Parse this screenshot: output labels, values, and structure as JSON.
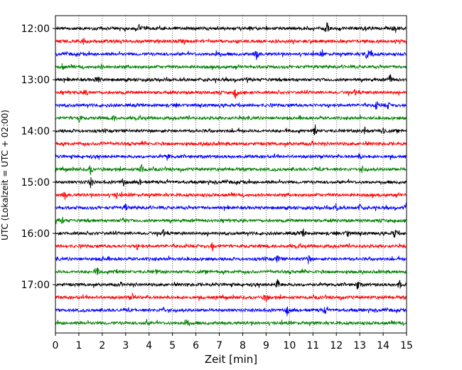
{
  "chart_data": {
    "type": "line",
    "title": "",
    "xlabel": "Zeit  [min]",
    "ylabel": "UTC (Lokalzeit = UTC + 02:00)",
    "xlim": [
      0,
      15
    ],
    "x_ticks": [
      "0",
      "1",
      "2",
      "3",
      "4",
      "5",
      "6",
      "7",
      "8",
      "9",
      "10",
      "11",
      "12",
      "13",
      "14",
      "15"
    ],
    "y_ticks": [
      "12:00",
      "13:00",
      "14:00",
      "15:00",
      "16:00",
      "17:00"
    ],
    "grid": "vertical dotted at each minute",
    "line_colors": [
      "#000000",
      "#ff0000",
      "#0000ff",
      "#008000"
    ],
    "series": [
      {
        "start": "12:00",
        "events": [
          [
            3.6,
            0.9
          ],
          [
            11.6,
            1.0
          ],
          [
            13.2,
            0.5
          ],
          [
            14.5,
            0.9
          ]
        ]
      },
      {
        "start": "12:15",
        "events": [
          [
            1.2,
            0.5
          ],
          [
            5.5,
            0.3
          ]
        ]
      },
      {
        "start": "12:30",
        "events": [
          [
            6.9,
            0.7
          ],
          [
            8.6,
            1.0
          ],
          [
            11.4,
            0.5
          ],
          [
            13.3,
            0.9
          ],
          [
            13.5,
            0.7
          ]
        ]
      },
      {
        "start": "12:45",
        "events": [
          [
            0.3,
            0.5
          ],
          [
            2.0,
            0.3
          ]
        ]
      },
      {
        "start": "13:00",
        "events": [
          [
            1.8,
            0.8
          ],
          [
            14.3,
            0.8
          ]
        ]
      },
      {
        "start": "13:15",
        "events": [
          [
            1.3,
            0.6
          ],
          [
            7.7,
            1.0
          ],
          [
            12.8,
            0.4
          ]
        ]
      },
      {
        "start": "13:30",
        "events": [
          [
            13.7,
            0.7
          ],
          [
            14.2,
            0.6
          ]
        ]
      },
      {
        "start": "13:45",
        "events": [
          [
            1.0,
            0.6
          ],
          [
            2.5,
            0.4
          ]
        ]
      },
      {
        "start": "14:00",
        "events": [
          [
            11.1,
            0.8
          ],
          [
            13.2,
            0.7
          ],
          [
            14.0,
            0.9
          ]
        ]
      },
      {
        "start": "14:15",
        "events": [
          [
            2.0,
            0.3
          ],
          [
            6.5,
            0.3
          ]
        ]
      },
      {
        "start": "14:30",
        "events": [
          [
            4.8,
            0.7
          ],
          [
            13.0,
            0.4
          ]
        ]
      },
      {
        "start": "14:45",
        "events": [
          [
            1.5,
            0.7
          ],
          [
            3.7,
            0.9
          ],
          [
            13.1,
            0.5
          ]
        ]
      },
      {
        "start": "15:00",
        "events": [
          [
            1.5,
            0.8
          ],
          [
            2.9,
            0.9
          ],
          [
            3.6,
            0.5
          ]
        ]
      },
      {
        "start": "15:15",
        "events": [
          [
            0.4,
            0.6
          ],
          [
            2.6,
            0.5
          ]
        ]
      },
      {
        "start": "15:30",
        "events": [
          [
            3.0,
            0.6
          ],
          [
            12.0,
            0.8
          ],
          [
            13.0,
            0.6
          ],
          [
            15.0,
            1.0
          ]
        ]
      },
      {
        "start": "15:45",
        "events": [
          [
            0.3,
            0.5
          ],
          [
            2.9,
            0.6
          ]
        ]
      },
      {
        "start": "16:00",
        "events": [
          [
            4.6,
            0.6
          ],
          [
            10.6,
            0.7
          ],
          [
            12.5,
            0.8
          ],
          [
            14.5,
            0.8
          ]
        ]
      },
      {
        "start": "16:15",
        "events": [
          [
            6.7,
            0.8
          ],
          [
            3.5,
            0.3
          ]
        ]
      },
      {
        "start": "16:30",
        "events": [
          [
            9.5,
            0.7
          ],
          [
            10.8,
            0.7
          ],
          [
            2.0,
            0.3
          ]
        ]
      },
      {
        "start": "16:45",
        "events": [
          [
            1.8,
            0.7
          ],
          [
            2.6,
            0.5
          ],
          [
            4.3,
            0.3
          ]
        ]
      },
      {
        "start": "17:00",
        "events": [
          [
            9.5,
            1.0
          ],
          [
            12.9,
            0.8
          ],
          [
            14.7,
            0.7
          ]
        ]
      },
      {
        "start": "17:15",
        "events": [
          [
            3.3,
            0.5
          ],
          [
            9.0,
            0.8
          ]
        ]
      },
      {
        "start": "17:30",
        "events": [
          [
            4.6,
            0.6
          ],
          [
            9.9,
            0.8
          ],
          [
            11.5,
            0.7
          ]
        ]
      },
      {
        "start": "17:45",
        "events": [
          [
            3.9,
            0.4
          ],
          [
            5.6,
            1.0
          ]
        ]
      }
    ]
  }
}
